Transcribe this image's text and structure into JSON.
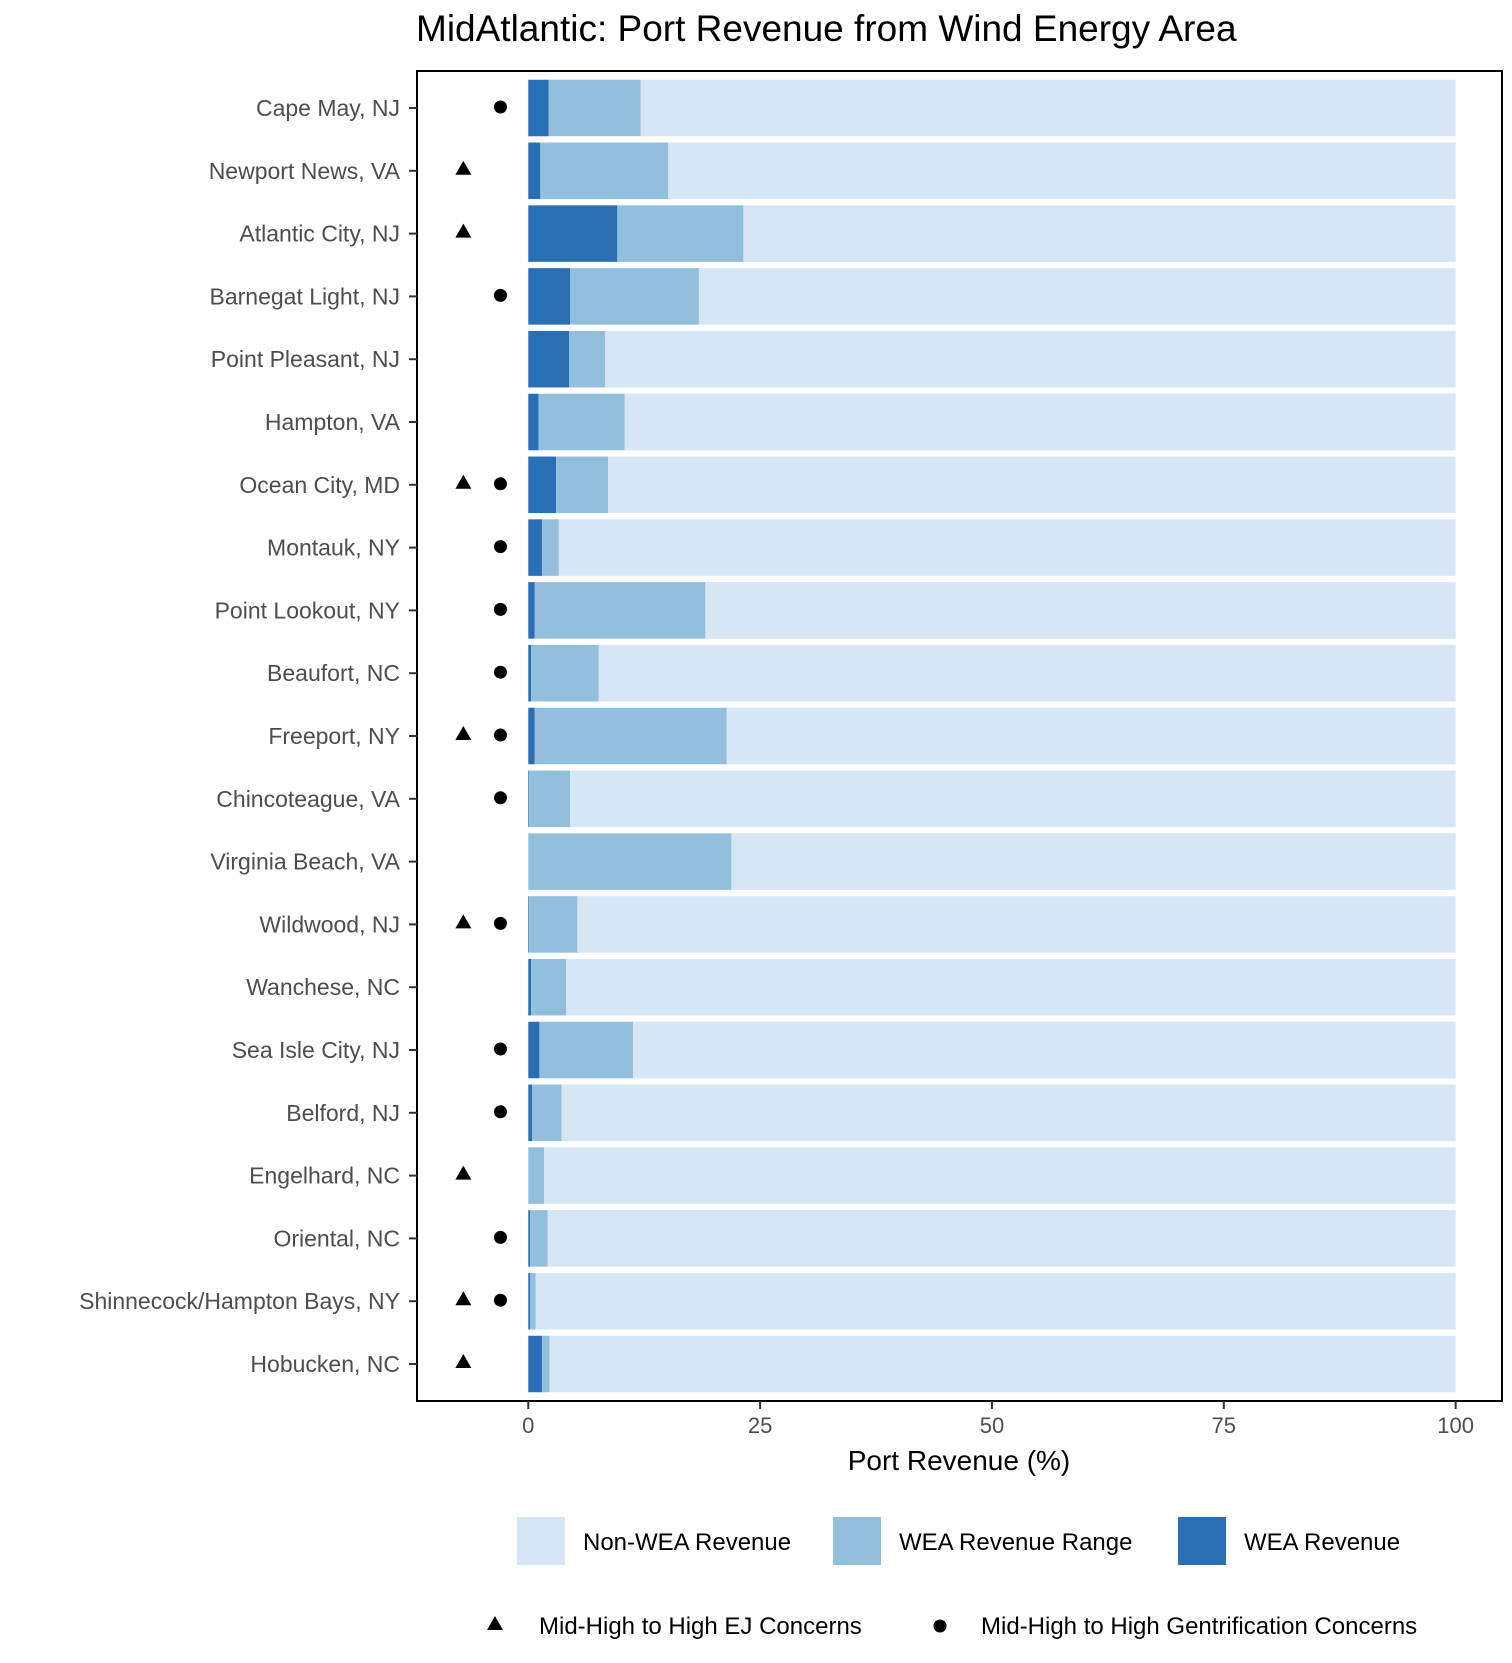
{
  "chart_data": {
    "type": "bar",
    "orientation": "horizontal",
    "stacked": true,
    "title": "MidAtlantic: Port Revenue from Wind Energy Area",
    "xlabel": "Port Revenue (%)",
    "ylabel": "",
    "xlim": [
      -12,
      105
    ],
    "xticks": [
      0,
      25,
      50,
      75,
      100
    ],
    "grid": false,
    "legend_position": "bottom",
    "categories": [
      "Cape May, NJ",
      "Newport News, VA",
      "Atlantic City, NJ",
      "Barnegat Light, NJ",
      "Point Pleasant, NJ",
      "Hampton, VA",
      "Ocean City, MD",
      "Montauk, NY",
      "Point Lookout, NY",
      "Beaufort, NC",
      "Freeport, NY",
      "Chincoteague, VA",
      "Virginia Beach, VA",
      "Wildwood, NJ",
      "Wanchese, NC",
      "Sea Isle City, NJ",
      "Belford, NJ",
      "Engelhard, NC",
      "Oriental, NC",
      "Shinnecock/Hampton Bays, NY",
      "Hobucken, NC"
    ],
    "series": [
      {
        "name": "WEA Revenue",
        "color": "#2a6fb3",
        "values": [
          2.2,
          1.3,
          9.6,
          4.5,
          4.4,
          1.1,
          3.0,
          1.5,
          0.7,
          0.3,
          0.7,
          0.1,
          0.0,
          0.1,
          0.3,
          1.2,
          0.4,
          0.0,
          0.2,
          0.2,
          1.5
        ]
      },
      {
        "name": "WEA Revenue Range",
        "color": "#91bfdc",
        "values": [
          9.9,
          13.8,
          13.6,
          13.9,
          3.9,
          9.3,
          5.6,
          1.8,
          18.4,
          7.3,
          20.7,
          4.4,
          21.9,
          5.2,
          3.8,
          10.1,
          3.2,
          1.7,
          1.9,
          0.6,
          0.8
        ]
      },
      {
        "name": "Non-WEA Revenue",
        "color": "#d6e6f4",
        "values": [
          87.9,
          84.9,
          76.8,
          81.6,
          91.7,
          89.6,
          91.4,
          96.7,
          80.9,
          92.4,
          78.6,
          95.5,
          78.1,
          94.7,
          95.9,
          88.7,
          96.4,
          98.3,
          97.9,
          99.2,
          97.7
        ]
      }
    ],
    "markers": {
      "ej": {
        "label": "Mid-High to High EJ Concerns",
        "symbol": "triangle",
        "x": -7,
        "flags": [
          false,
          true,
          true,
          false,
          false,
          false,
          true,
          false,
          false,
          false,
          true,
          false,
          false,
          true,
          false,
          false,
          false,
          true,
          false,
          true,
          true
        ]
      },
      "gentrification": {
        "label": "Mid-High to High Gentrification Concerns",
        "symbol": "circle",
        "x": -3,
        "flags": [
          true,
          false,
          false,
          true,
          false,
          false,
          true,
          true,
          true,
          true,
          true,
          true,
          false,
          true,
          false,
          true,
          true,
          false,
          true,
          true,
          false
        ]
      }
    },
    "legend": [
      {
        "label": "Non-WEA Revenue",
        "color": "#d6e6f4"
      },
      {
        "label": "WEA Revenue Range",
        "color": "#91bfdc"
      },
      {
        "label": "WEA Revenue",
        "color": "#2a6fb3"
      }
    ]
  }
}
